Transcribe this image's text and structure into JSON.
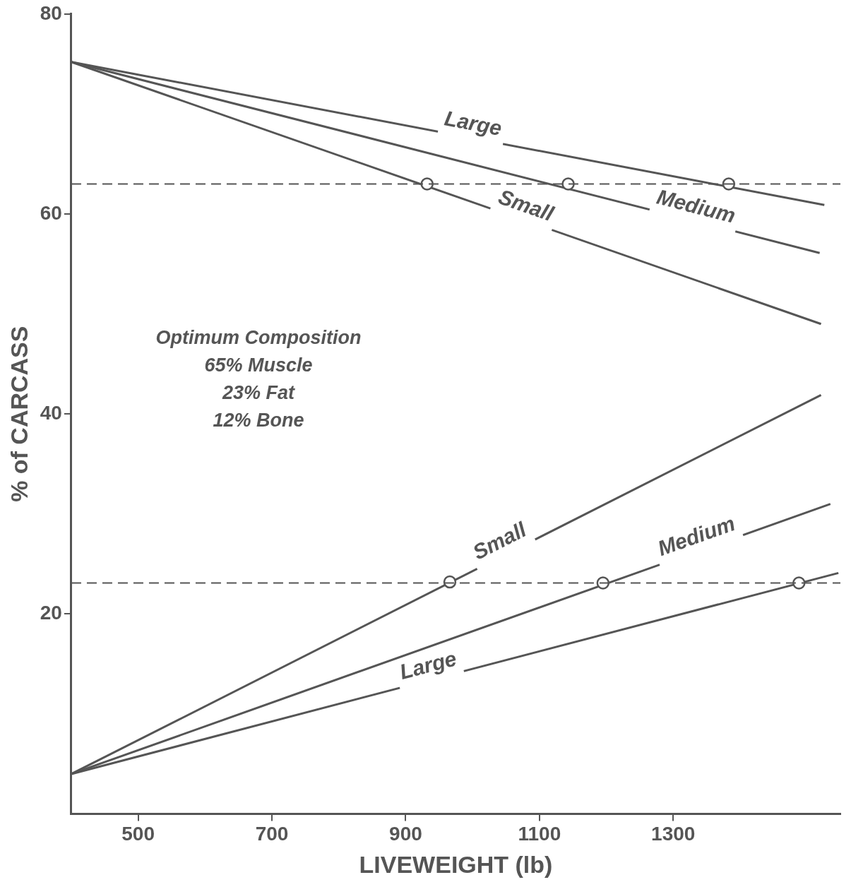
{
  "chart_data": {
    "type": "line",
    "xlabel": "LIVEWEIGHT (lb)",
    "ylabel": "% of CARCASS",
    "xlim": [
      400,
      1550
    ],
    "xticks": [
      500,
      700,
      900,
      1100,
      1300
    ],
    "ylim": [
      0,
      80
    ],
    "yticks": [
      20,
      40,
      60,
      80
    ],
    "series": [
      {
        "name": "Large",
        "color": "#555555",
        "x": [
          400,
          1526
        ],
        "values": [
          75.2,
          60.9
        ]
      },
      {
        "name": "Medium",
        "color": "#555555",
        "x": [
          400,
          1519
        ],
        "values": [
          75.2,
          56.1
        ]
      },
      {
        "name": "Small",
        "color": "#555555",
        "x": [
          400,
          1521
        ],
        "values": [
          75.2,
          49.0
        ]
      },
      {
        "name": "Small",
        "color": "#555555",
        "x": [
          400,
          1521
        ],
        "values": [
          4.0,
          41.9
        ]
      },
      {
        "name": "Medium",
        "color": "#555555",
        "x": [
          400,
          1535
        ],
        "values": [
          4.0,
          31.0
        ]
      },
      {
        "name": "Large",
        "color": "#555555",
        "x": [
          400,
          1547
        ],
        "values": [
          4.0,
          24.1
        ]
      },
      {
        "type": "scatter",
        "color": "#555555",
        "x": [
          932,
          1143,
          1383,
          966,
          1195,
          1488
        ],
        "values": [
          63,
          63,
          63,
          23.2,
          23.1,
          23.1
        ]
      }
    ],
    "ref_lines": [
      {
        "axis": "y",
        "value": 63,
        "color": "#555555",
        "line_style": "dashed"
      },
      {
        "axis": "y",
        "value": 23.1,
        "color": "#555555",
        "line_style": "dashed"
      }
    ],
    "annotations": [
      "Optimum Composition",
      "65% Muscle",
      "23% Fat",
      "12% Bone"
    ]
  }
}
